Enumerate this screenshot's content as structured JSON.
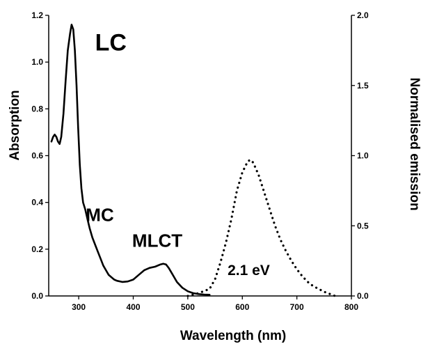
{
  "chart_data": {
    "type": "line",
    "xlabel": "Wavelength (nm)",
    "ylabel_left": "Absorption",
    "ylabel_right": "Normalised emission",
    "xlim": [
      245,
      800
    ],
    "ylim_left": [
      0,
      1.2
    ],
    "ylim_right": [
      0,
      2.0
    ],
    "x_ticks": [
      "300",
      "400",
      "500",
      "600",
      "700",
      "800"
    ],
    "y_left_ticks": [
      "0.0",
      "0.2",
      "0.4",
      "0.6",
      "0.8",
      "1.0",
      "1.2"
    ],
    "y_right_ticks": [
      "0.0",
      "0.5",
      "1.0",
      "1.5",
      "2.0"
    ],
    "series": [
      {
        "axis": "left",
        "style": "solid",
        "x": [
          250,
          253,
          256,
          259,
          262,
          265,
          268,
          272,
          276,
          280,
          284,
          287,
          290,
          293,
          296,
          299,
          302,
          305,
          308,
          312,
          316,
          320,
          325,
          330,
          335,
          340,
          345,
          350,
          355,
          360,
          365,
          370,
          380,
          390,
          400,
          410,
          420,
          430,
          440,
          450,
          455,
          460,
          465,
          470,
          475,
          480,
          490,
          500,
          510,
          520,
          530,
          540
        ],
        "y": [
          0.66,
          0.68,
          0.69,
          0.68,
          0.66,
          0.65,
          0.68,
          0.78,
          0.92,
          1.05,
          1.12,
          1.16,
          1.14,
          1.05,
          0.9,
          0.72,
          0.56,
          0.46,
          0.4,
          0.37,
          0.33,
          0.29,
          0.25,
          0.22,
          0.19,
          0.16,
          0.13,
          0.11,
          0.09,
          0.08,
          0.07,
          0.065,
          0.06,
          0.062,
          0.07,
          0.09,
          0.11,
          0.12,
          0.125,
          0.135,
          0.138,
          0.135,
          0.12,
          0.1,
          0.08,
          0.06,
          0.035,
          0.02,
          0.012,
          0.008,
          0.006,
          0.005
        ]
      },
      {
        "axis": "right",
        "style": "dotted",
        "x": [
          500,
          520,
          540,
          550,
          560,
          570,
          580,
          590,
          600,
          610,
          615,
          620,
          630,
          640,
          650,
          660,
          670,
          680,
          690,
          700,
          710,
          720,
          730,
          740,
          750,
          760,
          770
        ],
        "y": [
          0.0,
          0.02,
          0.05,
          0.12,
          0.24,
          0.38,
          0.55,
          0.75,
          0.88,
          0.96,
          0.97,
          0.95,
          0.86,
          0.74,
          0.62,
          0.5,
          0.4,
          0.32,
          0.25,
          0.19,
          0.14,
          0.1,
          0.07,
          0.05,
          0.03,
          0.015,
          0.0
        ]
      }
    ],
    "annotations": [
      {
        "text": "LC",
        "x": 330,
        "y": 1.05
      },
      {
        "text": "MC",
        "x": 313,
        "y": 0.32
      },
      {
        "text": "MLCT",
        "x": 398,
        "y": 0.21
      },
      {
        "text": "2.1 eV",
        "x": 573,
        "y": 0.09
      }
    ]
  }
}
